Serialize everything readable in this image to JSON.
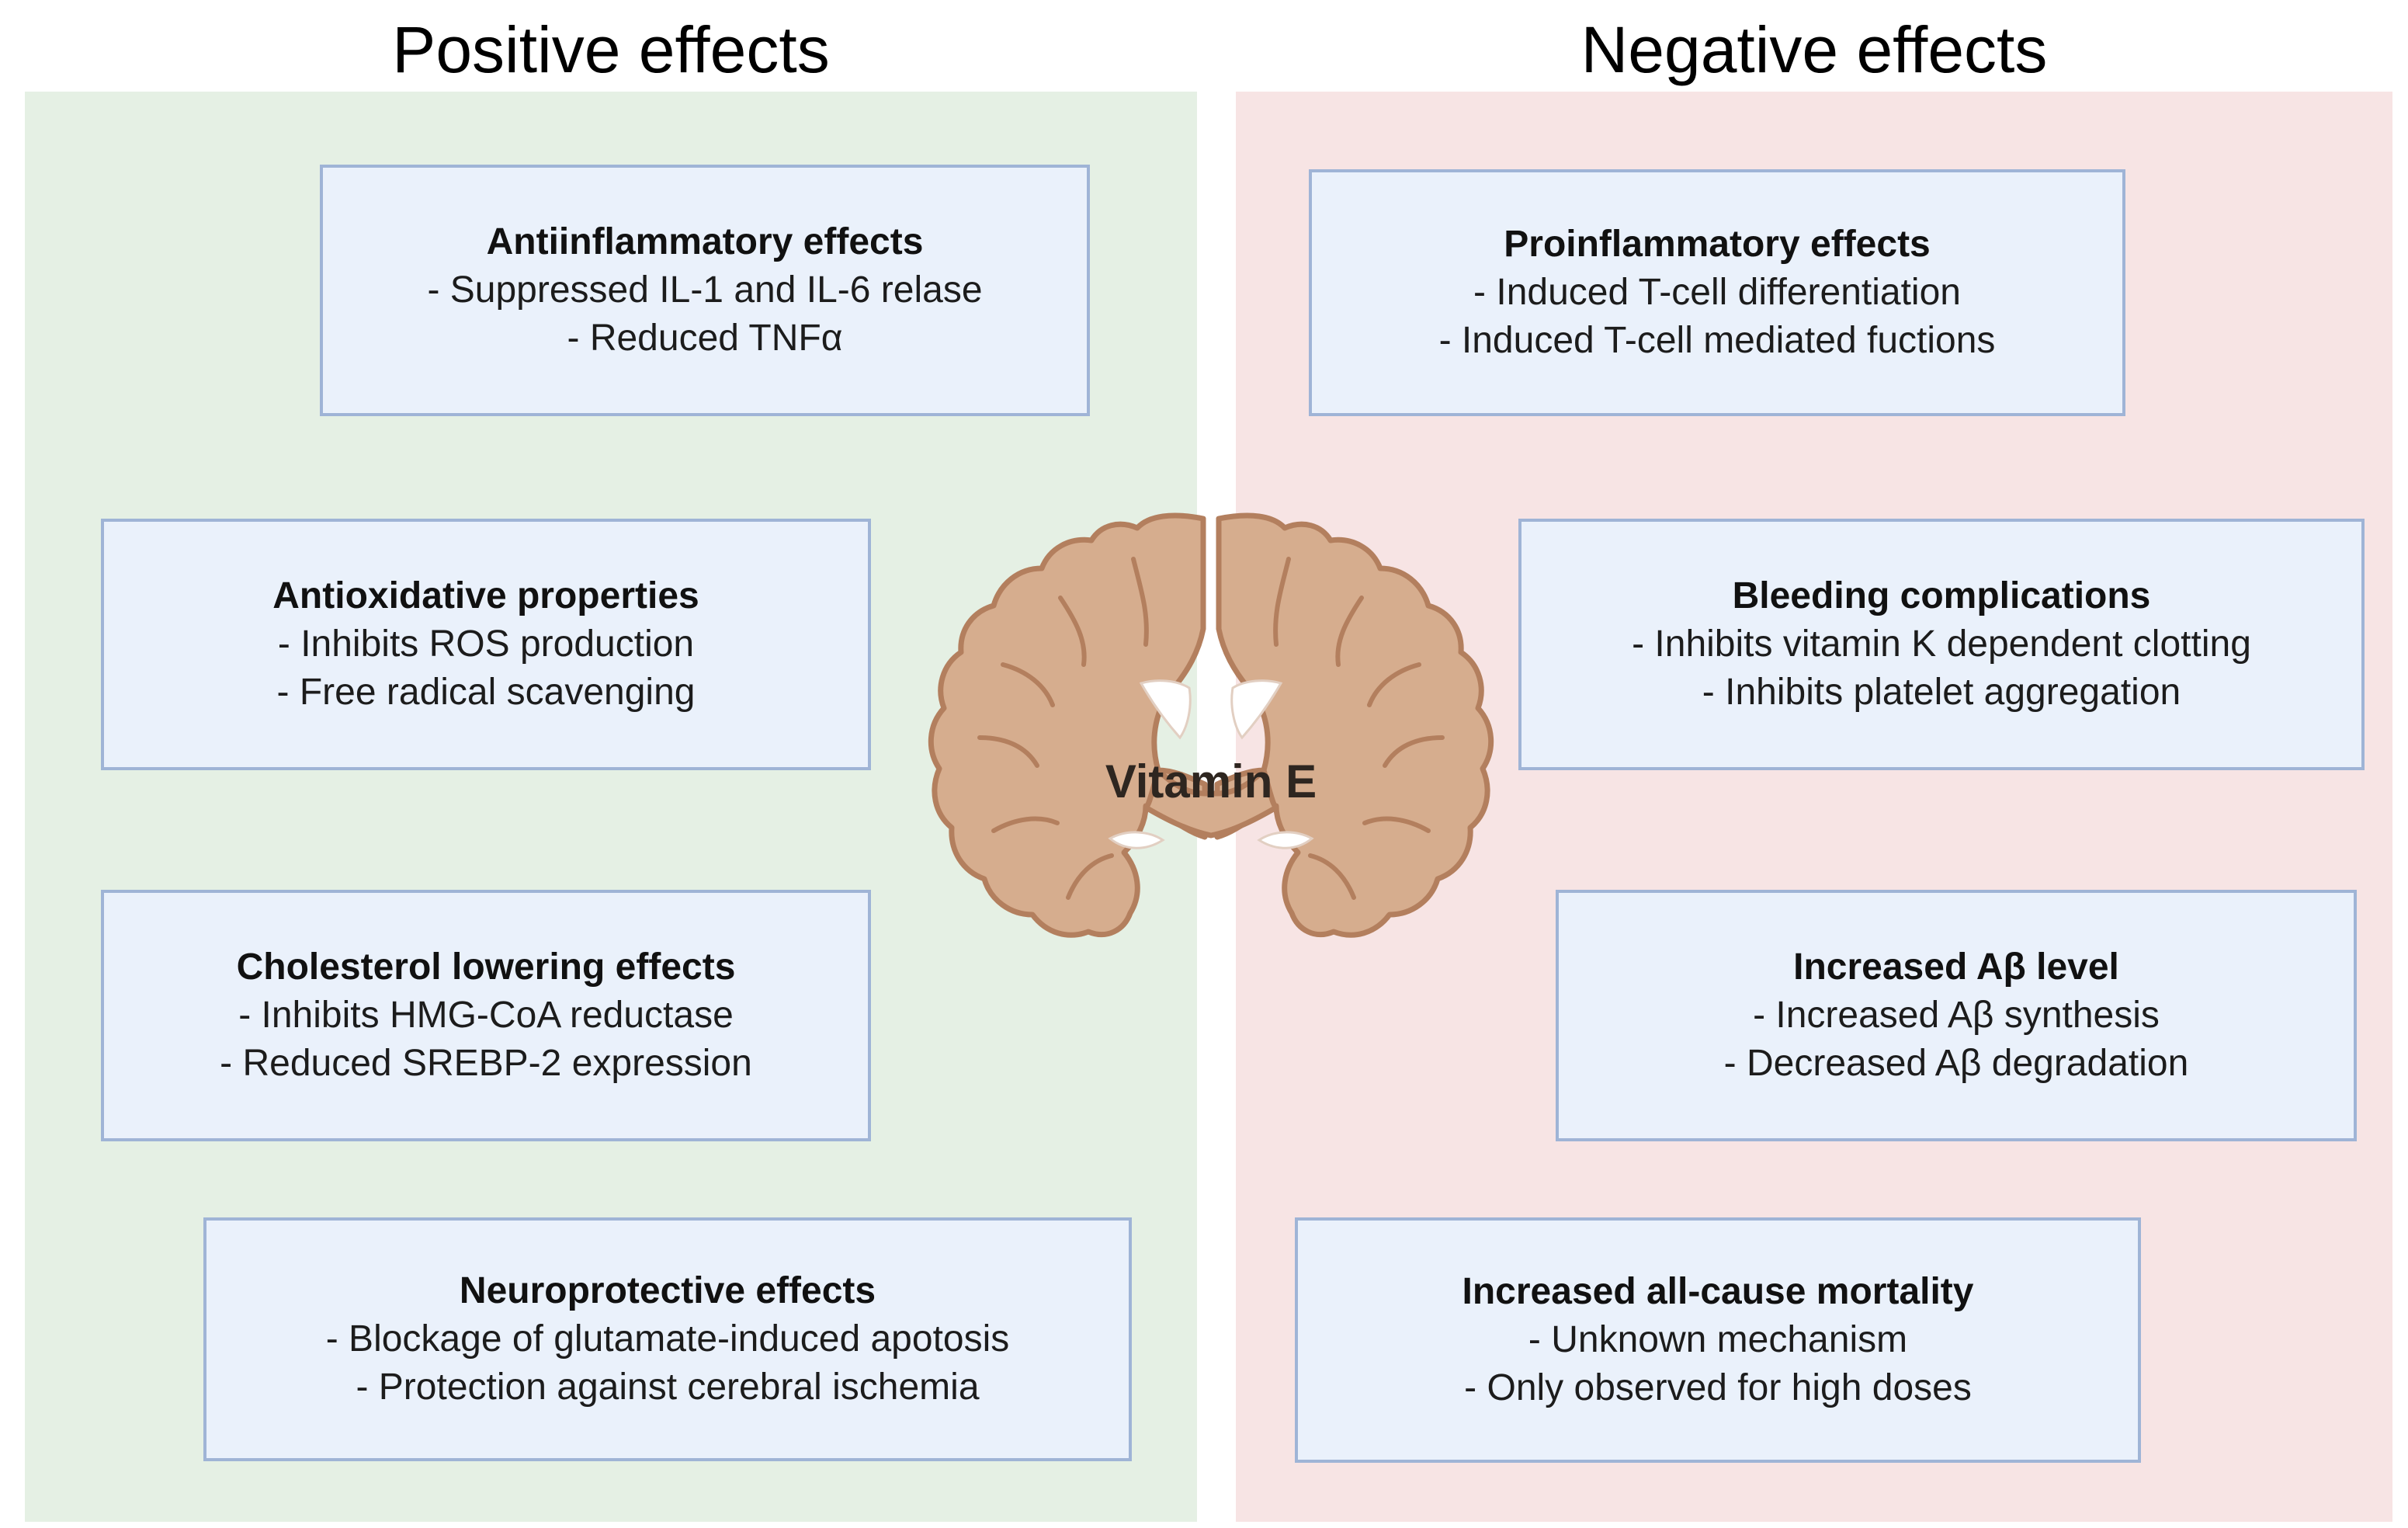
{
  "headings": {
    "positive": "Positive effects",
    "negative": "Negative effects"
  },
  "center_label": "Vitamin E",
  "colors": {
    "positive_panel": "#e5f0e4",
    "negative_panel": "#f7e4e4",
    "box_fill": "#eaf1fb",
    "box_border": "#9fb4d6",
    "brain_fill": "#d6ad8e",
    "brain_outline": "#b37f5e"
  },
  "positive": [
    {
      "title": "Antiinflammatory effects",
      "lines": [
        "- Suppressed IL-1 and IL-6 relase",
        "- Reduced TNFα"
      ]
    },
    {
      "title": "Antioxidative properties",
      "lines": [
        "- Inhibits ROS production",
        "- Free radical scavenging"
      ]
    },
    {
      "title": "Cholesterol lowering effects",
      "lines": [
        "- Inhibits HMG-CoA reductase",
        "- Reduced SREBP-2 expression"
      ]
    },
    {
      "title": "Neuroprotective effects",
      "lines": [
        "- Blockage of glutamate-induced apotosis",
        "- Protection against cerebral ischemia"
      ]
    }
  ],
  "negative": [
    {
      "title": "Proinflammatory effects",
      "lines": [
        "- Induced T-cell differentiation",
        "- Induced T-cell mediated fuctions"
      ]
    },
    {
      "title": "Bleeding complications",
      "lines": [
        "- Inhibits vitamin K dependent clotting",
        "- Inhibits platelet aggregation"
      ]
    },
    {
      "title": "Increased Aβ level",
      "lines": [
        "- Increased Aβ synthesis",
        "- Decreased Aβ degradation"
      ]
    },
    {
      "title": "Increased all-cause mortality",
      "lines": [
        "- Unknown mechanism",
        "- Only observed for high doses"
      ]
    }
  ]
}
